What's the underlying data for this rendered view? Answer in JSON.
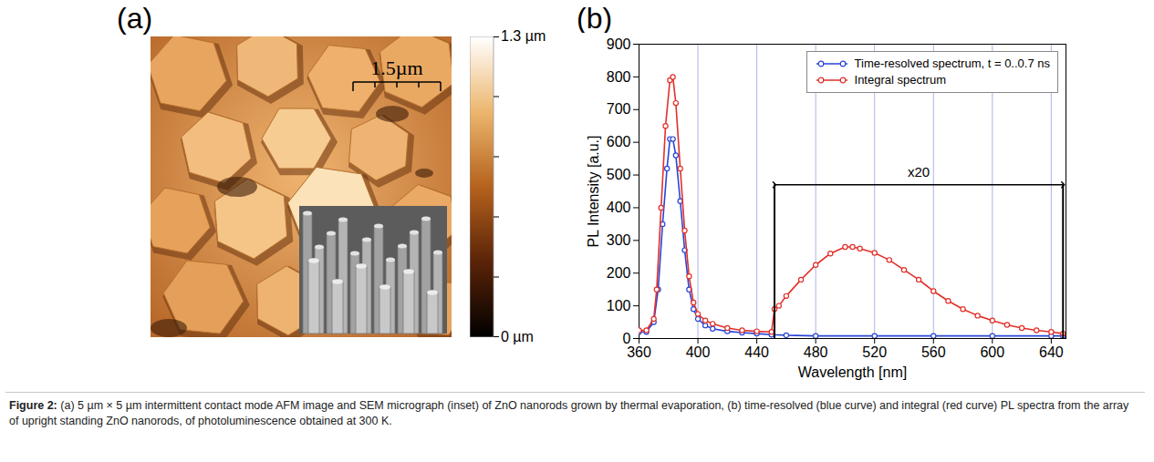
{
  "figure": {
    "panel_a": {
      "letter": "(a)",
      "scale_bar": "1.5µm",
      "colorbar": {
        "range": [
          0,
          1.3
        ],
        "ticks": [
          {
            "value": 0,
            "label": "0 µm"
          },
          {
            "value": 1.3,
            "label": "1.3 µm"
          }
        ]
      }
    },
    "caption": {
      "label": "Figure 2:",
      "text": "(a) 5 µm × 5 µm intermittent contact mode AFM image and SEM micrograph (inset) of ZnO nanorods grown by thermal evaporation, (b) time-resolved (blue curve) and integral (red curve) PL spectra from the array of upright standing ZnO nanorods, of photoluminescence obtained at 300 K."
    }
  },
  "chart_data": {
    "type": "line",
    "letter": "(b)",
    "x_label": "Wavelength [nm]",
    "y_label": "PL Intensity [a.u.]",
    "xlim": [
      360,
      650
    ],
    "xticks": [
      360,
      400,
      440,
      480,
      520,
      560,
      600,
      640
    ],
    "ylim": [
      0,
      900
    ],
    "yticks": [
      0,
      100,
      200,
      300,
      400,
      500,
      600,
      700,
      800,
      900
    ],
    "grid": true,
    "legend": "top-right",
    "series": [
      {
        "name": "Time-resolved spectrum, t = 0..0.7 ns",
        "color": "#2a45d8",
        "marker": "circle",
        "x": [
          360,
          365,
          370,
          373,
          376,
          379,
          381,
          383,
          385,
          388,
          391,
          394,
          397,
          400,
          405,
          410,
          420,
          430,
          440,
          450,
          460,
          480,
          520,
          560,
          600,
          640,
          648
        ],
        "values": [
          20,
          20,
          50,
          150,
          350,
          520,
          610,
          610,
          560,
          420,
          270,
          150,
          90,
          60,
          40,
          30,
          22,
          18,
          15,
          12,
          10,
          8,
          8,
          8,
          8,
          8,
          8
        ]
      },
      {
        "name": "Integral spectrum",
        "color": "#e2302a",
        "marker": "circle",
        "x": [
          360,
          365,
          370,
          372,
          375,
          378,
          381,
          383,
          385,
          388,
          391,
          394,
          397,
          400,
          405,
          410,
          420,
          430,
          440,
          450,
          452,
          455,
          460,
          470,
          480,
          490,
          500,
          505,
          510,
          520,
          530,
          540,
          550,
          560,
          570,
          580,
          590,
          600,
          610,
          620,
          630,
          640,
          648
        ],
        "values": [
          25,
          25,
          60,
          150,
          400,
          650,
          790,
          800,
          720,
          520,
          330,
          190,
          110,
          75,
          55,
          45,
          32,
          25,
          22,
          20,
          90,
          100,
          130,
          180,
          225,
          260,
          280,
          280,
          275,
          262,
          240,
          210,
          180,
          145,
          115,
          90,
          70,
          55,
          42,
          32,
          25,
          20,
          15
        ]
      }
    ],
    "annotations": [
      {
        "text": "x20",
        "x": [
          452,
          648
        ],
        "y": 470
      }
    ]
  }
}
